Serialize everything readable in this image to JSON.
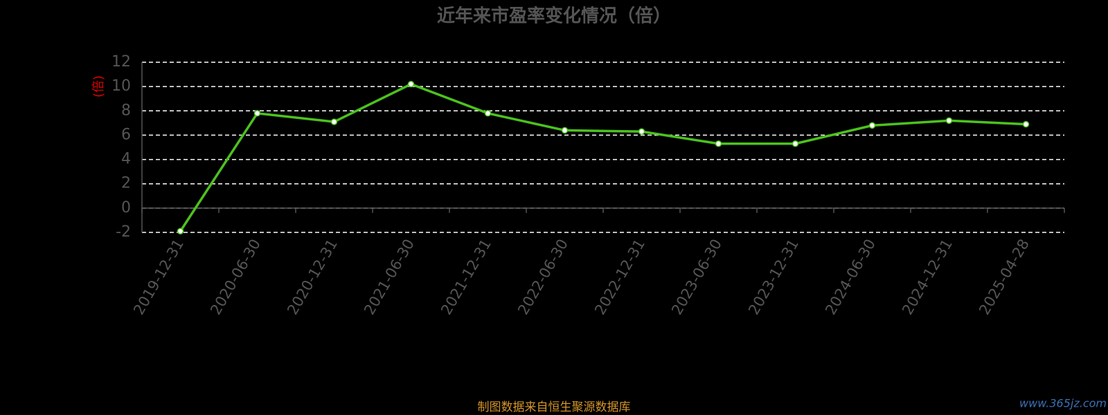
{
  "chart_data": {
    "type": "line",
    "title": "近年来市盈率变化情况（倍）",
    "y_label": "(倍)",
    "source": "制图数据来自恒生聚源数据库",
    "watermark": "www.365jz.com",
    "categories": [
      "2019-12-31",
      "2020-06-30",
      "2020-12-31",
      "2021-06-30",
      "2021-12-31",
      "2022-06-30",
      "2022-12-31",
      "2023-06-30",
      "2023-12-31",
      "2024-06-30",
      "2024-12-31",
      "2025-04-28"
    ],
    "series": [
      {
        "color": "#4cc21e",
        "values": [
          -1.9,
          7.8,
          7.1,
          10.2,
          7.8,
          6.4,
          6.3,
          5.3,
          5.3,
          6.8,
          7.2,
          6.9
        ]
      }
    ],
    "ylim": [
      -2,
      12
    ],
    "yticks": [
      -2,
      0,
      2,
      4,
      6,
      8,
      10,
      12
    ],
    "grid": true
  }
}
